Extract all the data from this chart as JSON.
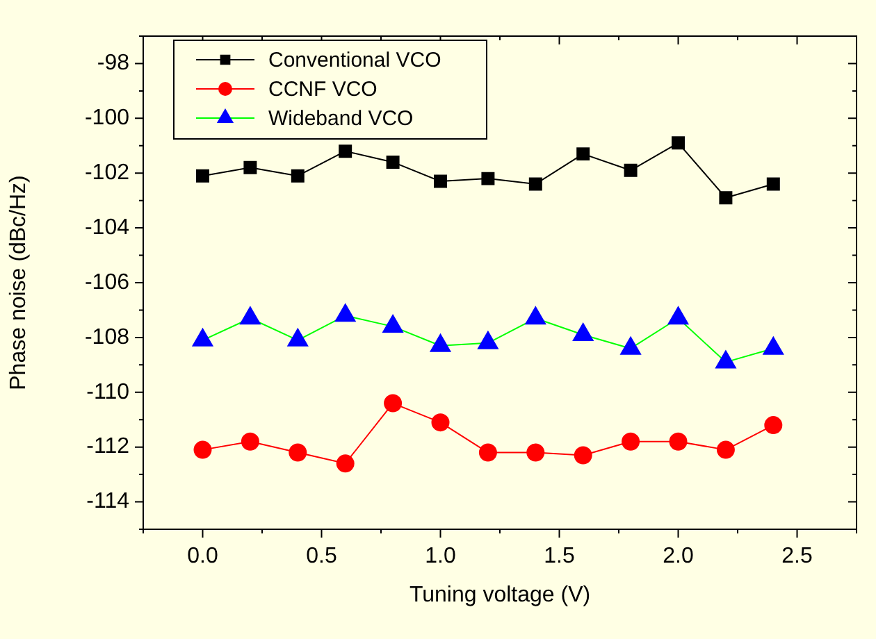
{
  "chart_data": {
    "type": "line",
    "xlabel": "Tuning voltage (V)",
    "ylabel": "Phase noise (dBc/Hz)",
    "x": [
      0,
      0.2,
      0.4,
      0.6,
      0.8,
      1.0,
      1.2,
      1.4,
      1.6,
      1.8,
      2.0,
      2.2,
      2.4
    ],
    "series": [
      {
        "name": "Conventional VCO",
        "color": "#000000",
        "marker": "square",
        "values": [
          -102.1,
          -101.8,
          -102.1,
          -101.2,
          -101.6,
          -102.3,
          -102.2,
          -102.4,
          -101.3,
          -101.9,
          -100.9,
          -102.9,
          -102.4
        ]
      },
      {
        "name": "CCNF VCO",
        "color": "#ff0000",
        "marker": "circle",
        "values": [
          -112.1,
          -111.8,
          -112.2,
          -112.6,
          -110.4,
          -111.1,
          -112.2,
          -112.2,
          -112.3,
          -111.8,
          -111.8,
          -112.1,
          -111.2
        ]
      },
      {
        "name": "Wideband VCO",
        "color": "#0000ff",
        "marker": "triangle",
        "values": [
          -108.1,
          -107.3,
          -108.1,
          -107.2,
          -107.6,
          -108.3,
          -108.2,
          -107.3,
          -107.9,
          -108.4,
          -107.3,
          -108.9,
          -108.4
        ]
      }
    ],
    "xlim": [
      -0.25,
      2.75
    ],
    "xticks": [
      {
        "value": -0.25,
        "label": null
      },
      {
        "value": 0,
        "label": "0.0"
      },
      {
        "value": 0.25,
        "label": null
      },
      0.5,
      {
        "value": 0.75,
        "label": null
      },
      {
        "value": 1,
        "label": "1.0"
      },
      {
        "value": 1.25,
        "label": null
      },
      1.5,
      {
        "value": 1.75,
        "label": null
      },
      {
        "value": 2,
        "label": "2.0"
      },
      {
        "value": 2.25,
        "label": null
      },
      2.5,
      {
        "value": 2.75,
        "label": null
      }
    ],
    "ylim": [
      -115,
      -97
    ],
    "yticks": [
      {
        "value": -115,
        "label": null
      },
      -114,
      {
        "value": -113,
        "label": null
      },
      -112,
      {
        "value": -111,
        "label": null
      },
      -110,
      {
        "value": -109,
        "label": null
      },
      -108,
      {
        "value": -107,
        "label": null
      },
      -106,
      {
        "value": -105,
        "label": null
      },
      -104,
      {
        "value": -103,
        "label": null
      },
      -102,
      {
        "value": -101,
        "label": null
      },
      -100,
      {
        "value": -99,
        "label": null
      },
      -98,
      {
        "value": -97,
        "label": null
      }
    ],
    "grid": false,
    "legend": "top left",
    "line_style": "solid"
  }
}
